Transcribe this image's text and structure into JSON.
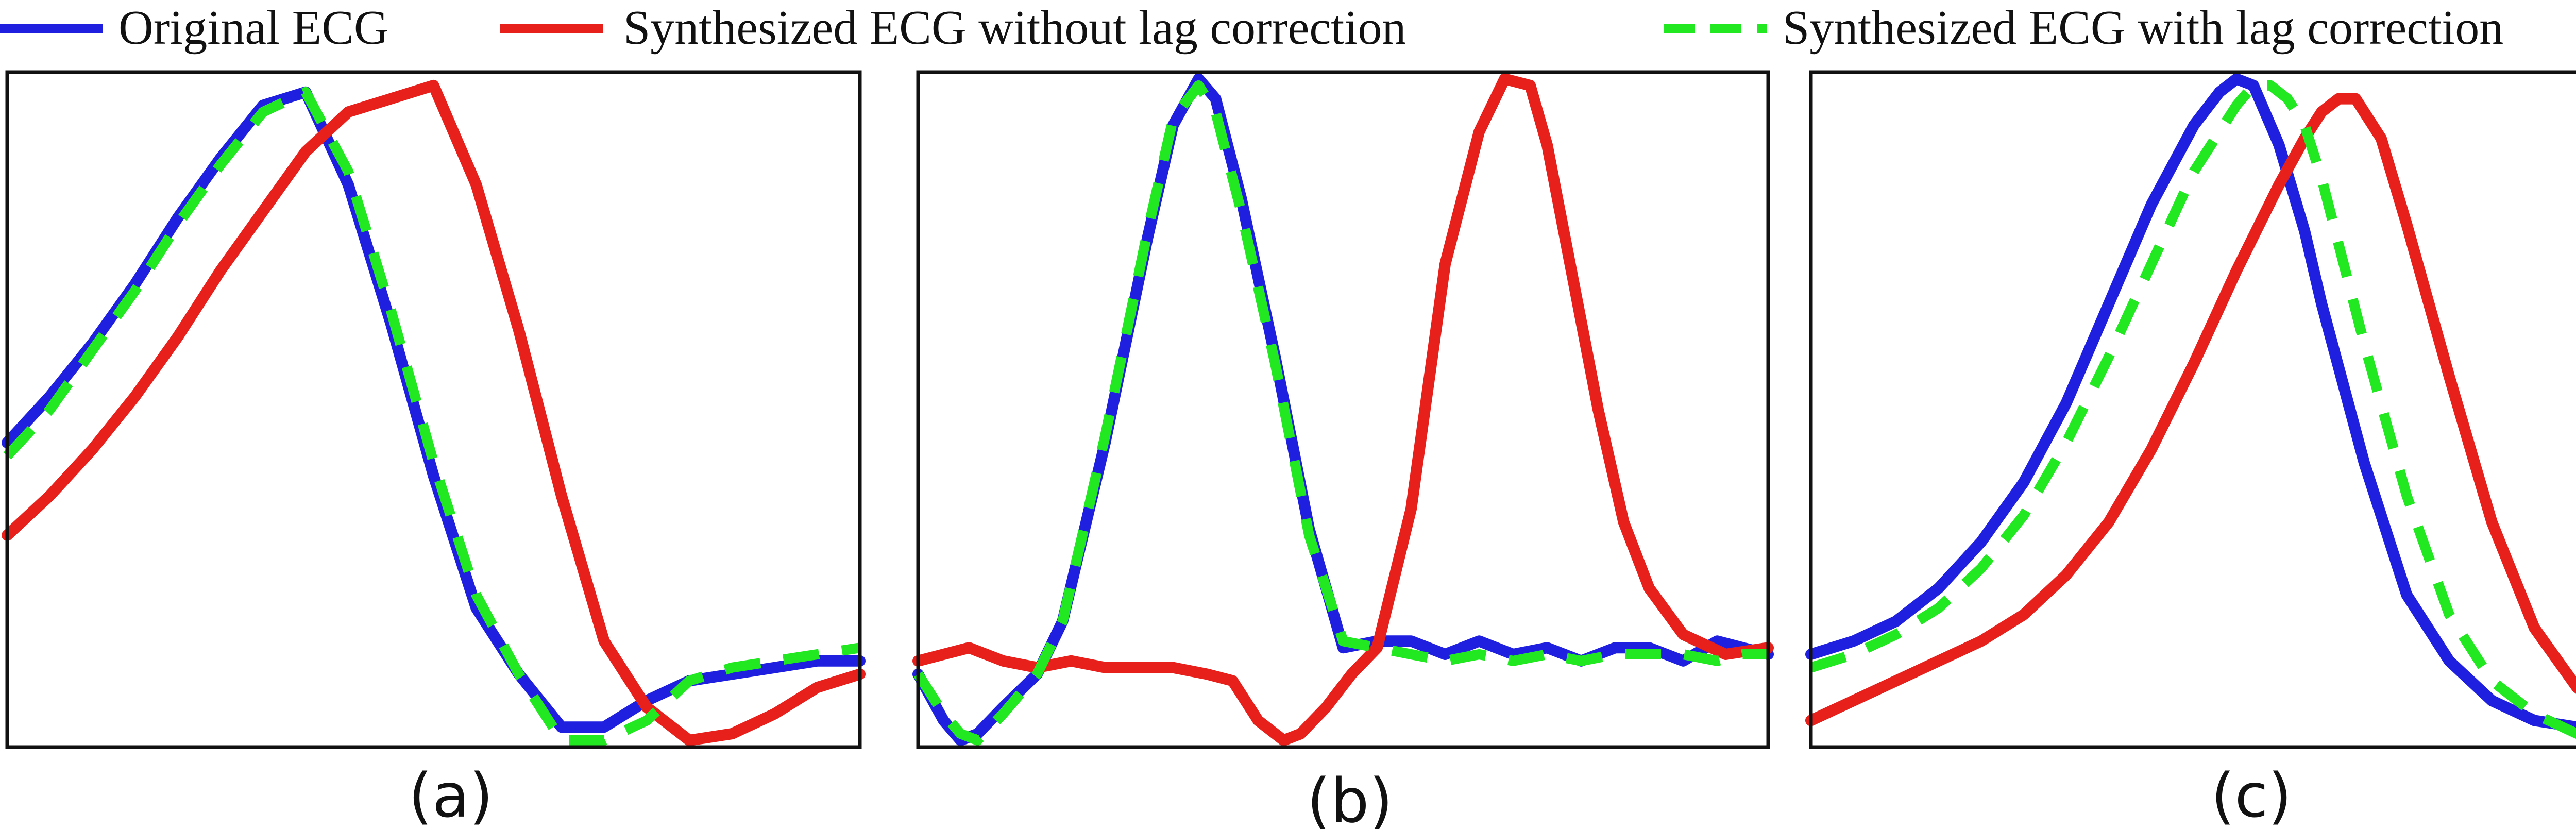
{
  "legend": [
    {
      "label": "Original ECG",
      "color": "#1f1fe0",
      "style": "solid"
    },
    {
      "label": "Synthesized ECG without lag correction",
      "color": "#e8201c",
      "style": "solid"
    },
    {
      "label": "Synthesized ECG with lag correction",
      "color": "#22e822",
      "style": "dashed"
    }
  ],
  "chart_data": [
    {
      "type": "line",
      "caption": "(a)",
      "grid": false,
      "axes_visible": false,
      "legend_placement": "top",
      "xlim": [
        0,
        100
      ],
      "ylim": [
        0,
        100
      ],
      "series": [
        {
          "name": "Original ECG",
          "color": "#1f1fe0",
          "style": "solid",
          "x": [
            0,
            5,
            10,
            15,
            20,
            25,
            30,
            35,
            40,
            45,
            50,
            55,
            60,
            65,
            70,
            75,
            80,
            85,
            90,
            95,
            100
          ],
          "y": [
            45,
            52,
            60,
            69,
            79,
            88,
            96,
            98,
            84,
            63,
            40,
            20,
            10,
            2,
            2,
            6,
            9,
            10,
            11,
            12,
            12
          ]
        },
        {
          "name": "Synthesized ECG without lag correction",
          "color": "#e8201c",
          "style": "solid",
          "x": [
            0,
            5,
            10,
            15,
            20,
            25,
            30,
            35,
            40,
            45,
            50,
            55,
            60,
            65,
            70,
            75,
            80,
            85,
            90,
            95,
            100
          ],
          "y": [
            31,
            37,
            44,
            52,
            61,
            71,
            80,
            89,
            95,
            97,
            99,
            84,
            62,
            37,
            15,
            5,
            0,
            1,
            4,
            8,
            10
          ]
        },
        {
          "name": "Synthesized ECG with lag correction",
          "color": "#22e822",
          "style": "dashed",
          "x": [
            0,
            5,
            10,
            15,
            20,
            25,
            30,
            35,
            40,
            45,
            50,
            55,
            60,
            65,
            70,
            75,
            80,
            85,
            90,
            95,
            100
          ],
          "y": [
            43,
            50,
            59,
            68,
            78,
            87,
            95,
            98,
            86,
            65,
            42,
            22,
            10,
            0,
            0,
            3,
            9,
            11,
            12,
            13,
            14
          ]
        }
      ]
    },
    {
      "type": "line",
      "caption": "(b)",
      "grid": false,
      "axes_visible": false,
      "xlim": [
        0,
        100
      ],
      "ylim": [
        0,
        100
      ],
      "series": [
        {
          "name": "Original ECG",
          "color": "#1f1fe0",
          "style": "solid",
          "x": [
            0,
            3,
            5,
            7,
            10,
            14,
            17,
            22,
            27,
            30,
            33,
            35,
            38,
            42,
            46,
            50,
            54,
            58,
            62,
            66,
            70,
            74,
            78,
            82,
            86,
            90,
            94,
            97,
            100
          ],
          "y": [
            10,
            3,
            0,
            1,
            5,
            10,
            18,
            45,
            76,
            93,
            100,
            97,
            82,
            58,
            32,
            14,
            15,
            15,
            13,
            15,
            13,
            14,
            12,
            14,
            14,
            12,
            15,
            14,
            13
          ]
        },
        {
          "name": "Synthesized ECG without lag correction",
          "color": "#e8201c",
          "style": "solid",
          "x": [
            0,
            3,
            6,
            10,
            14,
            18,
            22,
            26,
            30,
            34,
            37,
            40,
            43,
            45,
            48,
            51,
            54,
            58,
            62,
            66,
            69,
            72,
            74,
            77,
            80,
            83,
            86,
            90,
            95,
            100
          ],
          "y": [
            12,
            13,
            14,
            12,
            11,
            12,
            11,
            11,
            11,
            10,
            9,
            3,
            0,
            1,
            5,
            10,
            14,
            35,
            72,
            92,
            100,
            99,
            90,
            70,
            50,
            33,
            23,
            16,
            13,
            14
          ]
        },
        {
          "name": "Synthesized ECG with lag correction",
          "color": "#22e822",
          "style": "dashed",
          "x": [
            0,
            3,
            5,
            7,
            10,
            14,
            17,
            22,
            27,
            30,
            33,
            35,
            38,
            42,
            46,
            50,
            54,
            58,
            62,
            66,
            70,
            74,
            78,
            82,
            86,
            90,
            94,
            97,
            100
          ],
          "y": [
            10,
            4,
            1,
            0,
            4,
            10,
            18,
            46,
            77,
            94,
            99,
            95,
            80,
            57,
            31,
            15,
            14,
            13,
            12,
            13,
            12,
            13,
            12,
            13,
            13,
            13,
            12,
            13,
            13
          ]
        }
      ]
    },
    {
      "type": "line",
      "caption": "(c)",
      "grid": false,
      "axes_visible": false,
      "xlim": [
        0,
        100
      ],
      "ylim": [
        0,
        100
      ],
      "series": [
        {
          "name": "Original ECG",
          "color": "#1f1fe0",
          "style": "solid",
          "x": [
            0,
            5,
            10,
            15,
            20,
            25,
            30,
            35,
            40,
            45,
            48,
            50,
            52,
            55,
            58,
            60,
            65,
            70,
            75,
            80,
            85,
            90,
            95,
            100
          ],
          "y": [
            13,
            15,
            18,
            23,
            30,
            39,
            51,
            66,
            81,
            93,
            98,
            100,
            99,
            90,
            77,
            66,
            42,
            22,
            12,
            6,
            3,
            2,
            1,
            2
          ]
        },
        {
          "name": "Synthesized ECG without lag correction",
          "color": "#e8201c",
          "style": "solid",
          "x": [
            0,
            5,
            10,
            15,
            20,
            25,
            30,
            35,
            40,
            45,
            50,
            55,
            58,
            60,
            62,
            64,
            67,
            70,
            75,
            80,
            85,
            90,
            95,
            100
          ],
          "y": [
            3,
            6,
            9,
            12,
            15,
            19,
            25,
            33,
            44,
            57,
            71,
            84,
            91,
            95,
            97,
            97,
            91,
            78,
            55,
            33,
            17,
            8,
            3,
            0
          ]
        },
        {
          "name": "Synthesized ECG with lag correction",
          "color": "#22e822",
          "style": "dashed",
          "x": [
            0,
            5,
            10,
            15,
            20,
            25,
            30,
            35,
            40,
            45,
            50,
            52,
            54,
            56,
            58,
            60,
            62,
            65,
            70,
            75,
            80,
            85,
            90,
            95,
            100
          ],
          "y": [
            11,
            13,
            16,
            20,
            26,
            34,
            45,
            58,
            72,
            86,
            96,
            99,
            99,
            97,
            93,
            85,
            75,
            60,
            37,
            19,
            9,
            4,
            1,
            0,
            0
          ]
        }
      ]
    }
  ]
}
